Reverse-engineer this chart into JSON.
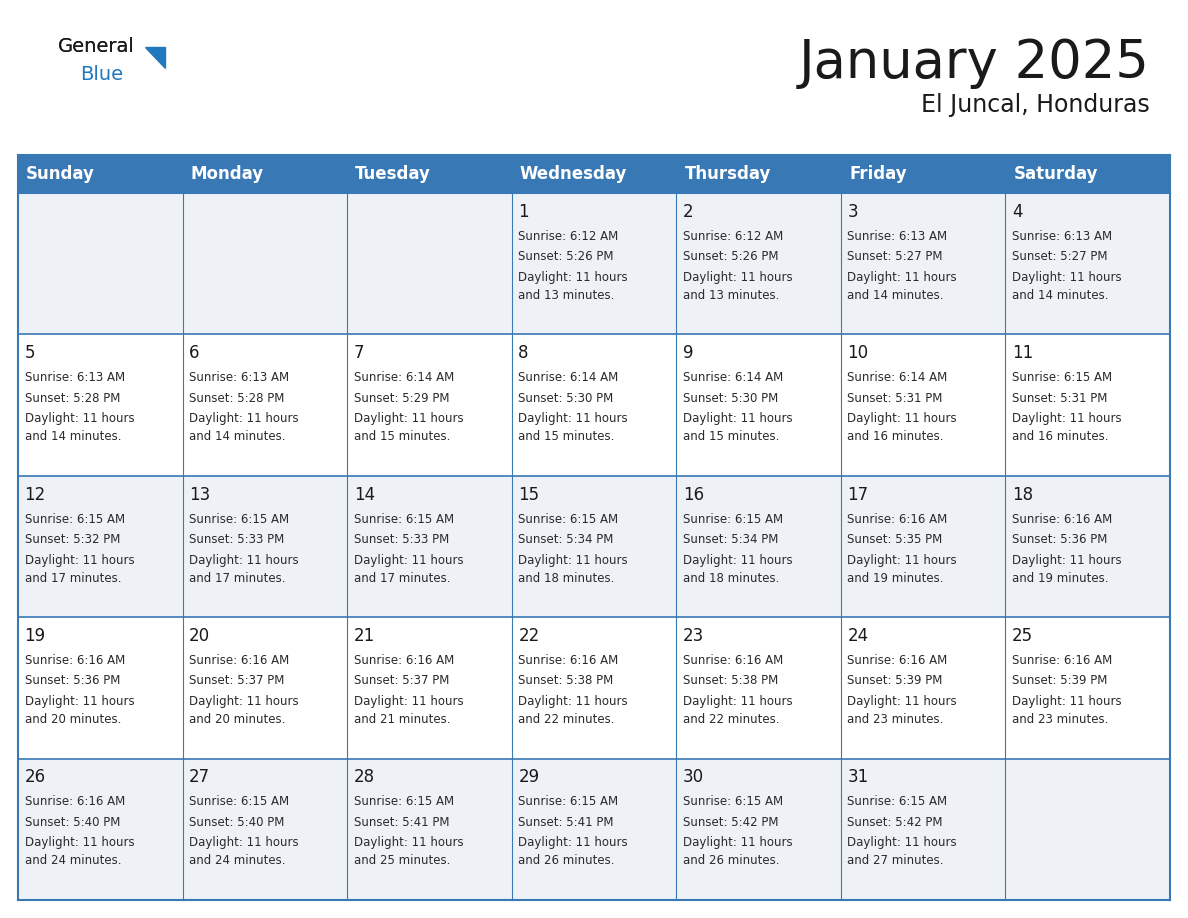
{
  "title": "January 2025",
  "subtitle": "El Juncal, Honduras",
  "header_color": "#3878b4",
  "header_text_color": "#ffffff",
  "cell_bg_light": "#eef2f7",
  "cell_bg_white": "#ffffff",
  "border_color": "#3878b4",
  "text_color_dark": "#1a1a1a",
  "text_color_body": "#2a2a2a",
  "days_of_week": [
    "Sunday",
    "Monday",
    "Tuesday",
    "Wednesday",
    "Thursday",
    "Friday",
    "Saturday"
  ],
  "logo_color": "#2178bc",
  "logo_black": "#1a1a1a",
  "title_fontsize": 38,
  "subtitle_fontsize": 17,
  "day_header_fontsize": 12,
  "cell_day_fontsize": 12,
  "cell_info_fontsize": 8.5,
  "weeks": [
    [
      {
        "day": "",
        "sunrise": "",
        "sunset": "",
        "daylight": ""
      },
      {
        "day": "",
        "sunrise": "",
        "sunset": "",
        "daylight": ""
      },
      {
        "day": "",
        "sunrise": "",
        "sunset": "",
        "daylight": ""
      },
      {
        "day": "1",
        "sunrise": "6:12 AM",
        "sunset": "5:26 PM",
        "daylight": "11 hours and 13 minutes."
      },
      {
        "day": "2",
        "sunrise": "6:12 AM",
        "sunset": "5:26 PM",
        "daylight": "11 hours and 13 minutes."
      },
      {
        "day": "3",
        "sunrise": "6:13 AM",
        "sunset": "5:27 PM",
        "daylight": "11 hours and 14 minutes."
      },
      {
        "day": "4",
        "sunrise": "6:13 AM",
        "sunset": "5:27 PM",
        "daylight": "11 hours and 14 minutes."
      }
    ],
    [
      {
        "day": "5",
        "sunrise": "6:13 AM",
        "sunset": "5:28 PM",
        "daylight": "11 hours and 14 minutes."
      },
      {
        "day": "6",
        "sunrise": "6:13 AM",
        "sunset": "5:28 PM",
        "daylight": "11 hours and 14 minutes."
      },
      {
        "day": "7",
        "sunrise": "6:14 AM",
        "sunset": "5:29 PM",
        "daylight": "11 hours and 15 minutes."
      },
      {
        "day": "8",
        "sunrise": "6:14 AM",
        "sunset": "5:30 PM",
        "daylight": "11 hours and 15 minutes."
      },
      {
        "day": "9",
        "sunrise": "6:14 AM",
        "sunset": "5:30 PM",
        "daylight": "11 hours and 15 minutes."
      },
      {
        "day": "10",
        "sunrise": "6:14 AM",
        "sunset": "5:31 PM",
        "daylight": "11 hours and 16 minutes."
      },
      {
        "day": "11",
        "sunrise": "6:15 AM",
        "sunset": "5:31 PM",
        "daylight": "11 hours and 16 minutes."
      }
    ],
    [
      {
        "day": "12",
        "sunrise": "6:15 AM",
        "sunset": "5:32 PM",
        "daylight": "11 hours and 17 minutes."
      },
      {
        "day": "13",
        "sunrise": "6:15 AM",
        "sunset": "5:33 PM",
        "daylight": "11 hours and 17 minutes."
      },
      {
        "day": "14",
        "sunrise": "6:15 AM",
        "sunset": "5:33 PM",
        "daylight": "11 hours and 17 minutes."
      },
      {
        "day": "15",
        "sunrise": "6:15 AM",
        "sunset": "5:34 PM",
        "daylight": "11 hours and 18 minutes."
      },
      {
        "day": "16",
        "sunrise": "6:15 AM",
        "sunset": "5:34 PM",
        "daylight": "11 hours and 18 minutes."
      },
      {
        "day": "17",
        "sunrise": "6:16 AM",
        "sunset": "5:35 PM",
        "daylight": "11 hours and 19 minutes."
      },
      {
        "day": "18",
        "sunrise": "6:16 AM",
        "sunset": "5:36 PM",
        "daylight": "11 hours and 19 minutes."
      }
    ],
    [
      {
        "day": "19",
        "sunrise": "6:16 AM",
        "sunset": "5:36 PM",
        "daylight": "11 hours and 20 minutes."
      },
      {
        "day": "20",
        "sunrise": "6:16 AM",
        "sunset": "5:37 PM",
        "daylight": "11 hours and 20 minutes."
      },
      {
        "day": "21",
        "sunrise": "6:16 AM",
        "sunset": "5:37 PM",
        "daylight": "11 hours and 21 minutes."
      },
      {
        "day": "22",
        "sunrise": "6:16 AM",
        "sunset": "5:38 PM",
        "daylight": "11 hours and 22 minutes."
      },
      {
        "day": "23",
        "sunrise": "6:16 AM",
        "sunset": "5:38 PM",
        "daylight": "11 hours and 22 minutes."
      },
      {
        "day": "24",
        "sunrise": "6:16 AM",
        "sunset": "5:39 PM",
        "daylight": "11 hours and 23 minutes."
      },
      {
        "day": "25",
        "sunrise": "6:16 AM",
        "sunset": "5:39 PM",
        "daylight": "11 hours and 23 minutes."
      }
    ],
    [
      {
        "day": "26",
        "sunrise": "6:16 AM",
        "sunset": "5:40 PM",
        "daylight": "11 hours and 24 minutes."
      },
      {
        "day": "27",
        "sunrise": "6:15 AM",
        "sunset": "5:40 PM",
        "daylight": "11 hours and 24 minutes."
      },
      {
        "day": "28",
        "sunrise": "6:15 AM",
        "sunset": "5:41 PM",
        "daylight": "11 hours and 25 minutes."
      },
      {
        "day": "29",
        "sunrise": "6:15 AM",
        "sunset": "5:41 PM",
        "daylight": "11 hours and 26 minutes."
      },
      {
        "day": "30",
        "sunrise": "6:15 AM",
        "sunset": "5:42 PM",
        "daylight": "11 hours and 26 minutes."
      },
      {
        "day": "31",
        "sunrise": "6:15 AM",
        "sunset": "5:42 PM",
        "daylight": "11 hours and 27 minutes."
      },
      {
        "day": "",
        "sunrise": "",
        "sunset": "",
        "daylight": ""
      }
    ]
  ]
}
